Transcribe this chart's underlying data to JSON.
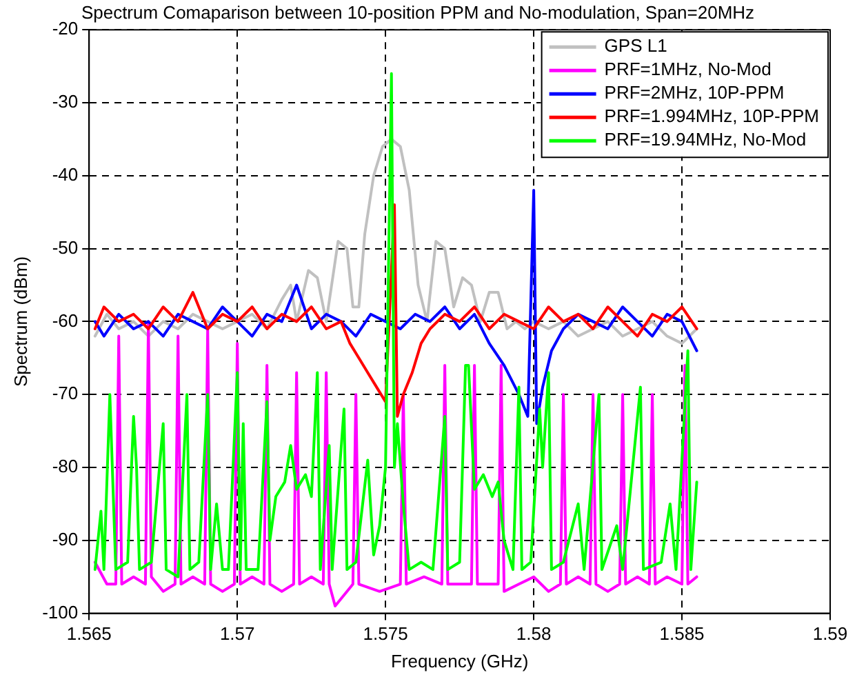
{
  "chart_data": {
    "type": "line",
    "title": "Spectrum Comaparison between 10-position PPM and No-modulation, Span=20MHz",
    "xlabel": "Frequency (GHz)",
    "ylabel": "Spectrum (dBm)",
    "xlim": [
      1.565,
      1.59
    ],
    "xticks": [
      1.565,
      1.57,
      1.575,
      1.58,
      1.585,
      1.59
    ],
    "ylim": [
      -100,
      -20
    ],
    "yticks": [
      -100,
      -90,
      -80,
      -70,
      -60,
      -50,
      -40,
      -30,
      -20
    ],
    "grid": true,
    "legend": "top right",
    "marker": "none",
    "line_style": "solid",
    "series": [
      {
        "name": "GPS L1",
        "color": "#c0c0c0",
        "x": [
          1.5652,
          1.5656,
          1.566,
          1.5665,
          1.567,
          1.5675,
          1.568,
          1.5685,
          1.569,
          1.5695,
          1.57,
          1.5705,
          1.571,
          1.5715,
          1.5718,
          1.572,
          1.5724,
          1.5727,
          1.573,
          1.5734,
          1.5737,
          1.5739,
          1.5741,
          1.5743,
          1.5746,
          1.5749,
          1.5752,
          1.5755,
          1.5758,
          1.5761,
          1.5764,
          1.5767,
          1.577,
          1.5773,
          1.5776,
          1.5779,
          1.5782,
          1.5785,
          1.5788,
          1.5791,
          1.5794,
          1.5797,
          1.58,
          1.5805,
          1.581,
          1.5815,
          1.582,
          1.5825,
          1.583,
          1.5835,
          1.584,
          1.5845,
          1.585,
          1.5855
        ],
        "values": [
          -62,
          -59,
          -61,
          -60,
          -62,
          -60,
          -61,
          -59,
          -60,
          -61,
          -60,
          -59,
          -61,
          -57,
          -55,
          -60,
          -53,
          -54,
          -60,
          -49,
          -50,
          -58,
          -58,
          -48,
          -40,
          -36,
          -35,
          -36,
          -42,
          -55,
          -60,
          -49,
          -50,
          -58,
          -54,
          -55,
          -60,
          -56,
          -56,
          -61,
          -60,
          -61,
          -60,
          -61,
          -60,
          -62,
          -61,
          -60,
          -62,
          -61,
          -60,
          -62,
          -63,
          -61
        ]
      },
      {
        "name": "PRF=1MHz, No-Mod",
        "color": "#ff00ff",
        "x": [
          1.5652,
          1.5656,
          1.5659,
          1.566,
          1.5661,
          1.5665,
          1.5669,
          1.567,
          1.5671,
          1.5675,
          1.5679,
          1.568,
          1.5681,
          1.5685,
          1.5689,
          1.569,
          1.5691,
          1.5695,
          1.5699,
          1.57,
          1.5701,
          1.5705,
          1.5709,
          1.571,
          1.5711,
          1.5715,
          1.5719,
          1.572,
          1.5721,
          1.5725,
          1.5729,
          1.573,
          1.5731,
          1.5733,
          1.5739,
          1.574,
          1.5741,
          1.5748,
          1.5755,
          1.5756,
          1.5757,
          1.5763,
          1.5769,
          1.577,
          1.5771,
          1.5779,
          1.578,
          1.5781,
          1.5788,
          1.5789,
          1.579,
          1.5795,
          1.58,
          1.5805,
          1.5809,
          1.581,
          1.5811,
          1.5815,
          1.5819,
          1.582,
          1.5821,
          1.5825,
          1.5829,
          1.583,
          1.5831,
          1.5835,
          1.5839,
          1.584,
          1.5841,
          1.5845,
          1.585,
          1.5851,
          1.5852,
          1.5855
        ],
        "values": [
          -93,
          -96,
          -96,
          -62,
          -96,
          -95,
          -96,
          -60,
          -95,
          -97,
          -96,
          -62,
          -96,
          -95,
          -96,
          -61,
          -96,
          -97,
          -96,
          -63,
          -96,
          -95,
          -96,
          -66,
          -96,
          -97,
          -96,
          -67,
          -96,
          -95,
          -96,
          -67,
          -96,
          -99,
          -96,
          -70,
          -96,
          -97,
          -96,
          -70,
          -96,
          -95,
          -96,
          -66,
          -96,
          -96,
          -66,
          -96,
          -96,
          -66,
          -97,
          -96,
          -95,
          -97,
          -96,
          -70,
          -96,
          -95,
          -96,
          -70,
          -96,
          -97,
          -96,
          -70,
          -96,
          -95,
          -96,
          -70,
          -96,
          -95,
          -96,
          -66,
          -96,
          -95
        ]
      },
      {
        "name": "PRF=2MHz, 10P-PPM",
        "color": "#0000ff",
        "x": [
          1.5652,
          1.5655,
          1.566,
          1.5665,
          1.567,
          1.5675,
          1.568,
          1.5685,
          1.569,
          1.5695,
          1.57,
          1.5705,
          1.571,
          1.5715,
          1.572,
          1.5725,
          1.573,
          1.5735,
          1.574,
          1.5745,
          1.575,
          1.5755,
          1.576,
          1.5765,
          1.577,
          1.5775,
          1.578,
          1.5785,
          1.579,
          1.5795,
          1.5798,
          1.58,
          1.5801,
          1.5803,
          1.5806,
          1.581,
          1.5815,
          1.582,
          1.5825,
          1.583,
          1.5835,
          1.584,
          1.5845,
          1.585,
          1.5855
        ],
        "values": [
          -60,
          -62,
          -59,
          -61,
          -60,
          -62,
          -59,
          -60,
          -61,
          -58,
          -60,
          -62,
          -59,
          -60,
          -55,
          -61,
          -59,
          -60,
          -62,
          -59,
          -60,
          -61,
          -59,
          -60,
          -58,
          -61,
          -59,
          -63,
          -66,
          -70,
          -73,
          -42,
          -74,
          -69,
          -64,
          -61,
          -59,
          -60,
          -61,
          -58,
          -60,
          -62,
          -59,
          -60,
          -64
        ]
      },
      {
        "name": "PRF=1.994MHz, 10P-PPM",
        "color": "#ff0000",
        "x": [
          1.5652,
          1.5655,
          1.566,
          1.5665,
          1.567,
          1.5675,
          1.568,
          1.5685,
          1.569,
          1.5695,
          1.57,
          1.5705,
          1.571,
          1.5715,
          1.572,
          1.5725,
          1.573,
          1.5735,
          1.5738,
          1.5741,
          1.5744,
          1.5747,
          1.575,
          1.5753,
          1.5754,
          1.5756,
          1.5759,
          1.5762,
          1.5765,
          1.577,
          1.5775,
          1.578,
          1.5785,
          1.579,
          1.5795,
          1.58,
          1.5805,
          1.581,
          1.5815,
          1.582,
          1.5825,
          1.583,
          1.5835,
          1.584,
          1.5845,
          1.585,
          1.5855
        ],
        "values": [
          -61,
          -58,
          -60,
          -59,
          -61,
          -58,
          -60,
          -56,
          -61,
          -59,
          -60,
          -58,
          -61,
          -59,
          -60,
          -58,
          -61,
          -60,
          -63,
          -65,
          -67,
          -69,
          -71,
          -44,
          -73,
          -70,
          -67,
          -63,
          -61,
          -59,
          -60,
          -58,
          -61,
          -59,
          -60,
          -61,
          -58,
          -60,
          -59,
          -61,
          -58,
          -60,
          -62,
          -59,
          -60,
          -58,
          -61
        ]
      },
      {
        "name": "PRF=19.94MHz, No-Mod",
        "color": "#00ff00",
        "x": [
          1.5652,
          1.5654,
          1.5655,
          1.5657,
          1.5659,
          1.5663,
          1.5665,
          1.5666,
          1.5667,
          1.5671,
          1.5675,
          1.5676,
          1.568,
          1.5683,
          1.5684,
          1.5687,
          1.569,
          1.5691,
          1.5693,
          1.5695,
          1.5697,
          1.57,
          1.5701,
          1.5702,
          1.5703,
          1.5707,
          1.571,
          1.5711,
          1.5713,
          1.5716,
          1.5718,
          1.572,
          1.5723,
          1.5725,
          1.5727,
          1.5728,
          1.5731,
          1.5732,
          1.5736,
          1.5737,
          1.574,
          1.5744,
          1.5746,
          1.5748,
          1.575,
          1.5752,
          1.5753,
          1.5754,
          1.5756,
          1.5758,
          1.5762,
          1.5766,
          1.577,
          1.5771,
          1.5775,
          1.5777,
          1.5778,
          1.578,
          1.5783,
          1.5786,
          1.5788,
          1.579,
          1.5793,
          1.5795,
          1.5796,
          1.5799,
          1.5802,
          1.5803,
          1.5805,
          1.5806,
          1.581,
          1.5815,
          1.5817,
          1.5822,
          1.5823,
          1.5828,
          1.583,
          1.5836,
          1.5837,
          1.5843,
          1.5846,
          1.5848,
          1.5852,
          1.5853,
          1.5855
        ],
        "values": [
          -94,
          -86,
          -94,
          -70,
          -94,
          -93,
          -73,
          -80,
          -94,
          -93,
          -74,
          -94,
          -95,
          -70,
          -94,
          -93,
          -70,
          -94,
          -85,
          -94,
          -94,
          -67,
          -94,
          -74,
          -94,
          -94,
          -71,
          -90,
          -84,
          -82,
          -77,
          -83,
          -81,
          -84,
          -67,
          -94,
          -77,
          -94,
          -72,
          -94,
          -93,
          -79,
          -92,
          -88,
          -80,
          -26,
          -80,
          -74,
          -85,
          -94,
          -93,
          -94,
          -73,
          -94,
          -93,
          -66,
          -66,
          -83,
          -81,
          -84,
          -82,
          -90,
          -94,
          -69,
          -94,
          -93,
          -72,
          -80,
          -67,
          -94,
          -93,
          -85,
          -94,
          -70,
          -94,
          -88,
          -94,
          -69,
          -94,
          -93,
          -85,
          -94,
          -64,
          -94,
          -82
        ]
      }
    ]
  }
}
